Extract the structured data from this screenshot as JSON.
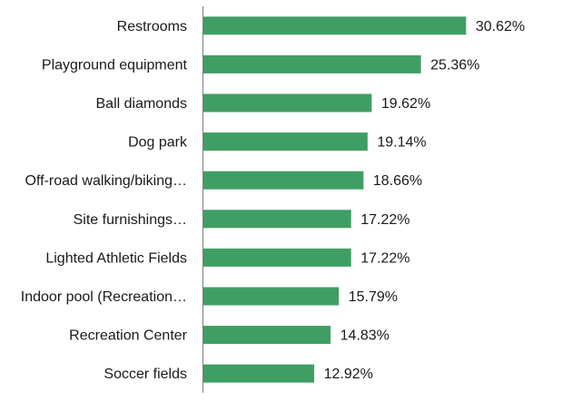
{
  "chart_data": {
    "type": "bar",
    "orientation": "horizontal",
    "categories": [
      "Restrooms",
      "Playground equipment",
      "Ball diamonds",
      "Dog park",
      "Off-road walking/biking…",
      "Site furnishings…",
      "Lighted Athletic Fields",
      "Indoor pool (Recreation…",
      "Recreation Center",
      "Soccer fields"
    ],
    "values": [
      30.62,
      25.36,
      19.62,
      19.14,
      18.66,
      17.22,
      17.22,
      15.79,
      14.83,
      12.92
    ],
    "value_labels": [
      "30.62%",
      "25.36%",
      "19.62%",
      "19.14%",
      "18.66%",
      "17.22%",
      "17.22%",
      "15.79%",
      "14.83%",
      "12.92%"
    ],
    "title": "",
    "xlabel": "",
    "ylabel": "",
    "grid": false,
    "bar_color": "#3f9e63"
  }
}
